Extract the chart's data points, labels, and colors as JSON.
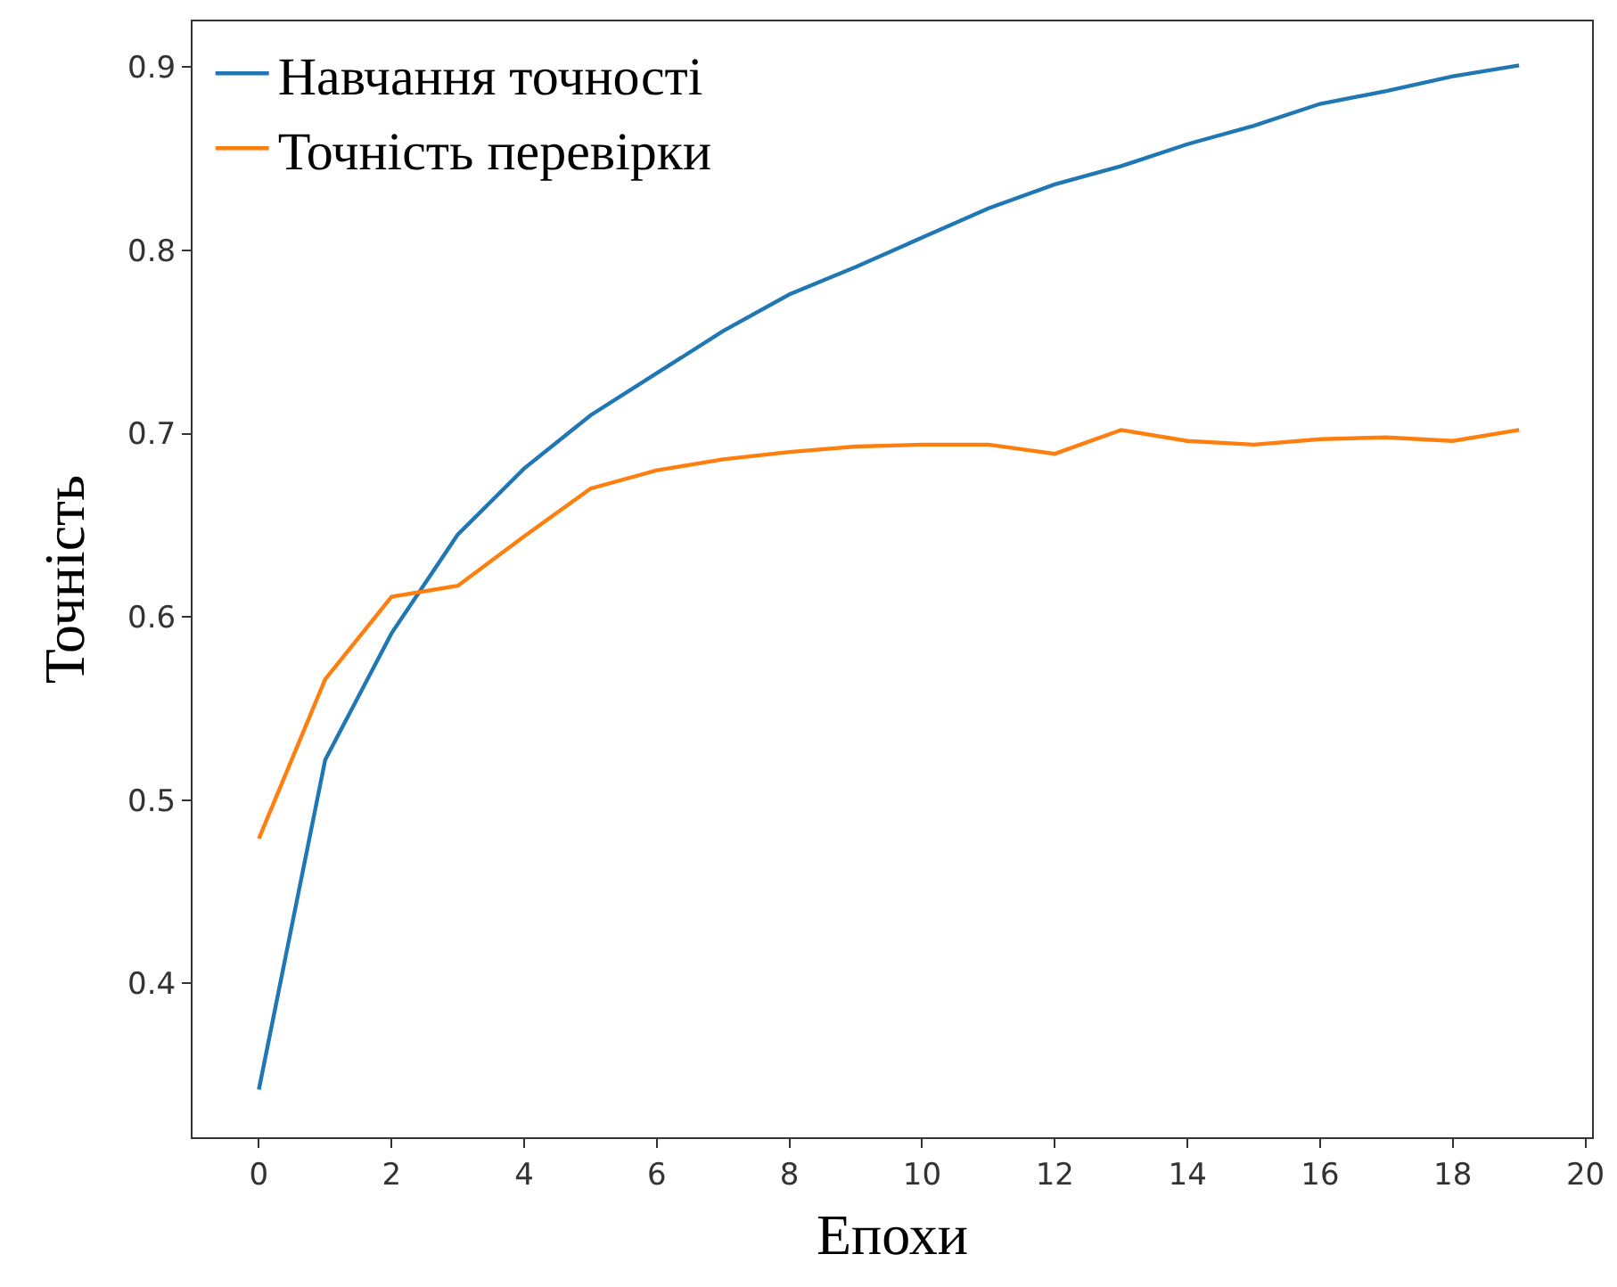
{
  "chart_data": {
    "type": "line",
    "xlabel": "Епохи",
    "ylabel": "Точність",
    "x": [
      0,
      1,
      2,
      3,
      4,
      5,
      6,
      7,
      8,
      9,
      10,
      11,
      12,
      13,
      14,
      15,
      16,
      17,
      18,
      19
    ],
    "series": [
      {
        "name": "Навчання точності",
        "color": "#1f77b4",
        "values": [
          0.342,
          0.522,
          0.591,
          0.645,
          0.681,
          0.71,
          0.733,
          0.756,
          0.776,
          0.791,
          0.807,
          0.823,
          0.836,
          0.846,
          0.858,
          0.868,
          0.88,
          0.887,
          0.895,
          0.901
        ]
      },
      {
        "name": "Точність перевірки",
        "color": "#ff7f0e",
        "values": [
          0.479,
          0.566,
          0.611,
          0.617,
          0.644,
          0.67,
          0.68,
          0.686,
          0.69,
          0.693,
          0.694,
          0.694,
          0.689,
          0.702,
          0.696,
          0.694,
          0.697,
          0.698,
          0.696,
          0.702
        ]
      }
    ],
    "xlim": [
      -1,
      20.1
    ],
    "xticks": [
      0,
      2,
      4,
      6,
      8,
      10,
      12,
      14,
      16,
      18,
      20
    ],
    "ylim": [
      0.316,
      0.925
    ],
    "yticks": [
      0.4,
      0.5,
      0.6,
      0.7,
      0.8,
      0.9
    ],
    "grid": false,
    "legend": "top left",
    "marker": "none",
    "line_style": "solid"
  }
}
